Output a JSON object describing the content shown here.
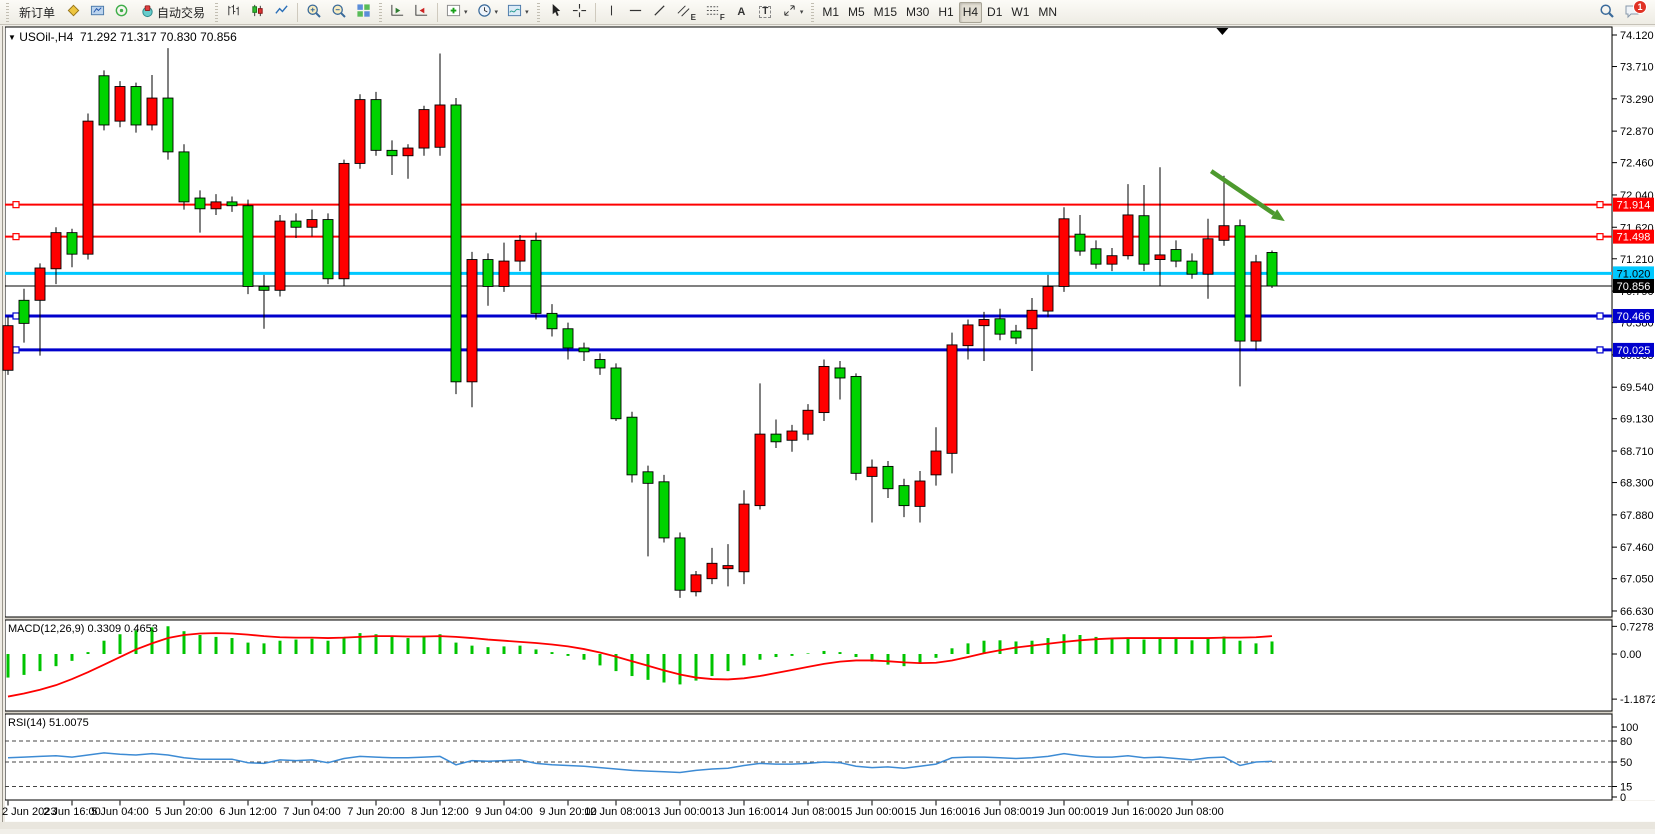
{
  "toolbar": {
    "new_order_label": "新订单",
    "autotrade_label": "自动交易",
    "timeframes": [
      "M1",
      "M5",
      "M15",
      "M30",
      "H1",
      "H4",
      "D1",
      "W1",
      "MN"
    ],
    "active_timeframe": "H4",
    "chat_badge": "1",
    "icon_names": [
      "order-gold-icon",
      "terminal-icon",
      "signals-icon",
      "autotrade-icon",
      "bar-chart-icon",
      "candle-chart-icon",
      "line-chart-icon",
      "zoom-in-icon",
      "zoom-out-icon",
      "tile-windows-icon",
      "auto-scroll-icon",
      "chart-shift-icon",
      "add-indicator-icon",
      "period-clock-icon",
      "template-icon",
      "cursor-icon",
      "crosshair-icon",
      "vline-icon",
      "hline-icon",
      "trendline-icon",
      "channel-icon",
      "fibonacci-icon",
      "text-icon",
      "label-icon",
      "arrows-icon",
      "search-icon",
      "chat-icon"
    ]
  },
  "glyphs": {
    "dropdown": "▾",
    "title_caret": "▼",
    "letter_a": "A",
    "letter_t": "T",
    "letter_e": "E",
    "letter_f": "F"
  },
  "chart": {
    "symbol_info": "USOil-,H4",
    "ohlc_text": "71.292 71.317 70.830 70.856"
  },
  "indicators": {
    "macd_label": "MACD(12,26,9) 0.3309 0.4653",
    "rsi_label": "RSI(14) 51.0075"
  },
  "axes": {
    "price_ticks": [
      "74.120",
      "73.710",
      "73.290",
      "72.870",
      "72.460",
      "72.040",
      "71.620",
      "71.210",
      "70.790",
      "70.380",
      "69.960",
      "69.540",
      "69.130",
      "68.710",
      "68.300",
      "67.880",
      "67.460",
      "67.050",
      "66.630"
    ],
    "macd_ticks": [
      "0.7278",
      "0.00",
      "-1.1872"
    ],
    "rsi_ticks": [
      "100",
      "80",
      "50",
      "15",
      "0"
    ],
    "rsi_levels": [
      80,
      50,
      15
    ],
    "time_labels": [
      {
        "bar": 0,
        "label": "2 Jun 2023"
      },
      {
        "bar": 4,
        "label": "2 Jun 16:00"
      },
      {
        "bar": 7,
        "label": "5 Jun 04:00"
      },
      {
        "bar": 11,
        "label": "5 Jun 20:00"
      },
      {
        "bar": 15,
        "label": "6 Jun 12:00"
      },
      {
        "bar": 19,
        "label": "7 Jun 04:00"
      },
      {
        "bar": 23,
        "label": "7 Jun 20:00"
      },
      {
        "bar": 27,
        "label": "8 Jun 12:00"
      },
      {
        "bar": 31,
        "label": "9 Jun 04:00"
      },
      {
        "bar": 35,
        "label": "9 Jun 20:00"
      },
      {
        "bar": 38,
        "label": "12 Jun 08:00"
      },
      {
        "bar": 42,
        "label": "13 Jun 00:00"
      },
      {
        "bar": 46,
        "label": "13 Jun 16:00"
      },
      {
        "bar": 50,
        "label": "14 Jun 08:00"
      },
      {
        "bar": 54,
        "label": "15 Jun 00:00"
      },
      {
        "bar": 58,
        "label": "15 Jun 16:00"
      },
      {
        "bar": 62,
        "label": "16 Jun 08:00"
      },
      {
        "bar": 66,
        "label": "19 Jun 00:00"
      },
      {
        "bar": 70,
        "label": "19 Jun 16:00"
      },
      {
        "bar": 74,
        "label": "20 Jun 08:00"
      }
    ],
    "price_labels": [
      {
        "price": 71.914,
        "label": "71.914",
        "bg": "#fe0000",
        "fg": "#ffffff"
      },
      {
        "price": 71.498,
        "label": "71.498",
        "bg": "#fe0000",
        "fg": "#ffffff"
      },
      {
        "price": 71.02,
        "label": "71.020",
        "bg": "#00c8ff",
        "fg": "#000000"
      },
      {
        "price": 70.856,
        "label": "70.856",
        "bg": "#000000",
        "fg": "#ffffff"
      },
      {
        "price": 70.466,
        "label": "70.466",
        "bg": "#0000cc",
        "fg": "#ffffff"
      },
      {
        "price": 70.025,
        "label": "70.025",
        "bg": "#0000cc",
        "fg": "#ffffff"
      }
    ]
  },
  "colors": {
    "bull_candle": "#fe0000",
    "bear_candle": "#00d200",
    "candle_outline": "#000000",
    "macd_histogram": "#00c400",
    "macd_signal": "#fe0000",
    "rsi_line": "#3d8bd4",
    "resistance_line": "#fe0000",
    "pivot_line": "#00c8ff",
    "support_line": "#0000cc",
    "current_price_line": "#000000",
    "arrow": "#4d9a2e"
  },
  "chart_data": {
    "type": "candlestick",
    "symbol": "USOil",
    "timeframe": "H4",
    "price_range": [
      66.63,
      74.12
    ],
    "note": "Chinese color convention: red = bullish (close>open), green = bearish",
    "candles": [
      [
        69.76,
        70.46,
        69.7,
        70.34
      ],
      [
        70.67,
        70.82,
        70.12,
        70.37
      ],
      [
        70.67,
        71.15,
        69.95,
        71.09
      ],
      [
        71.08,
        71.62,
        70.88,
        71.55
      ],
      [
        71.55,
        71.6,
        71.1,
        71.27
      ],
      [
        71.27,
        73.1,
        71.2,
        73.0
      ],
      [
        73.59,
        73.66,
        72.88,
        72.95
      ],
      [
        73.0,
        73.52,
        72.92,
        73.45
      ],
      [
        73.45,
        73.5,
        72.85,
        72.95
      ],
      [
        72.95,
        73.6,
        72.88,
        73.3
      ],
      [
        73.3,
        73.95,
        72.5,
        72.6
      ],
      [
        72.6,
        72.7,
        71.85,
        71.95
      ],
      [
        72.0,
        72.1,
        71.55,
        71.86
      ],
      [
        71.86,
        72.05,
        71.78,
        71.95
      ],
      [
        71.95,
        72.02,
        71.82,
        71.9
      ],
      [
        71.9,
        71.98,
        70.75,
        70.85
      ],
      [
        70.85,
        71.0,
        70.3,
        70.8
      ],
      [
        70.8,
        71.78,
        70.72,
        71.7
      ],
      [
        71.7,
        71.8,
        71.48,
        71.62
      ],
      [
        71.62,
        71.85,
        71.5,
        71.72
      ],
      [
        71.72,
        71.8,
        70.88,
        70.95
      ],
      [
        70.95,
        72.5,
        70.85,
        72.45
      ],
      [
        72.45,
        73.35,
        72.38,
        73.28
      ],
      [
        73.28,
        73.38,
        72.55,
        72.62
      ],
      [
        72.62,
        72.75,
        72.3,
        72.55
      ],
      [
        72.55,
        72.7,
        72.25,
        72.65
      ],
      [
        72.65,
        73.2,
        72.55,
        73.15
      ],
      [
        72.66,
        73.88,
        72.55,
        73.21
      ],
      [
        73.21,
        73.3,
        69.45,
        69.61
      ],
      [
        69.61,
        71.3,
        69.28,
        71.2
      ],
      [
        71.2,
        71.28,
        70.6,
        70.85
      ],
      [
        70.85,
        71.42,
        70.78,
        71.18
      ],
      [
        71.18,
        71.52,
        71.05,
        71.45
      ],
      [
        71.45,
        71.55,
        70.42,
        70.5
      ],
      [
        70.5,
        70.62,
        70.2,
        70.3
      ],
      [
        70.3,
        70.38,
        69.9,
        70.05
      ],
      [
        70.05,
        70.12,
        69.88,
        70.0
      ],
      [
        69.9,
        69.98,
        69.7,
        69.79
      ],
      [
        69.79,
        69.85,
        69.1,
        69.13
      ],
      [
        69.15,
        69.22,
        68.3,
        68.4
      ],
      [
        68.44,
        68.52,
        67.34,
        68.29
      ],
      [
        68.31,
        68.4,
        67.52,
        67.58
      ],
      [
        67.58,
        67.65,
        66.8,
        66.9
      ],
      [
        66.88,
        67.15,
        66.82,
        67.1
      ],
      [
        67.05,
        67.45,
        66.98,
        67.25
      ],
      [
        67.18,
        67.5,
        66.95,
        67.22
      ],
      [
        67.14,
        68.2,
        66.98,
        68.02
      ],
      [
        68.0,
        69.59,
        67.95,
        68.93
      ],
      [
        68.93,
        69.12,
        68.75,
        68.83
      ],
      [
        68.85,
        69.05,
        68.7,
        68.97
      ],
      [
        68.93,
        69.32,
        68.85,
        69.24
      ],
      [
        69.21,
        69.9,
        69.1,
        69.81
      ],
      [
        69.79,
        69.88,
        69.38,
        69.66
      ],
      [
        69.68,
        69.72,
        68.33,
        68.42
      ],
      [
        68.38,
        68.6,
        67.78,
        68.5
      ],
      [
        68.51,
        68.58,
        68.1,
        68.22
      ],
      [
        68.26,
        68.35,
        67.85,
        68.0
      ],
      [
        67.99,
        68.45,
        67.78,
        68.32
      ],
      [
        68.4,
        69.02,
        68.26,
        68.71
      ],
      [
        68.68,
        70.25,
        68.42,
        70.09
      ],
      [
        70.08,
        70.42,
        69.9,
        70.35
      ],
      [
        70.34,
        70.52,
        69.88,
        70.42
      ],
      [
        70.43,
        70.56,
        70.15,
        70.23
      ],
      [
        70.27,
        70.35,
        70.1,
        70.18
      ],
      [
        70.3,
        70.7,
        69.75,
        70.54
      ],
      [
        70.53,
        71.0,
        70.45,
        70.85
      ],
      [
        70.85,
        71.88,
        70.78,
        71.73
      ],
      [
        71.53,
        71.78,
        71.25,
        71.31
      ],
      [
        71.34,
        71.45,
        71.08,
        71.14
      ],
      [
        71.14,
        71.35,
        71.05,
        71.25
      ],
      [
        71.25,
        72.18,
        71.2,
        71.78
      ],
      [
        71.77,
        72.17,
        71.05,
        71.14
      ],
      [
        71.2,
        72.4,
        70.85,
        71.26
      ],
      [
        71.33,
        71.45,
        71.1,
        71.18
      ],
      [
        71.18,
        71.28,
        70.95,
        71.01
      ],
      [
        71.01,
        71.73,
        70.69,
        71.47
      ],
      [
        71.45,
        72.29,
        71.38,
        71.64
      ],
      [
        71.64,
        71.72,
        69.55,
        70.14
      ],
      [
        70.14,
        71.26,
        70.02,
        71.17
      ],
      [
        71.292,
        71.317,
        70.83,
        70.856
      ]
    ],
    "levels": [
      {
        "price": 71.914,
        "color": "#fe0000",
        "width": 2,
        "handles": true
      },
      {
        "price": 71.498,
        "color": "#fe0000",
        "width": 2,
        "handles": true
      },
      {
        "price": 71.02,
        "color": "#00c8ff",
        "width": 3,
        "handles": false
      },
      {
        "price": 70.466,
        "color": "#0000cc",
        "width": 3,
        "handles": true
      },
      {
        "price": 70.025,
        "color": "#0000cc",
        "width": 3,
        "handles": true
      },
      {
        "price": 70.856,
        "color": "#000000",
        "width": 1,
        "handles": false
      }
    ],
    "annotations": {
      "arrow": {
        "from_bar": 75.2,
        "from_price": 72.35,
        "to_bar": 79.8,
        "to_price": 71.7,
        "color": "#4d9a2e"
      },
      "shift_marker_bar": 75.9
    },
    "macd": {
      "params": "12,26,9",
      "current_main": 0.3309,
      "current_signal": 0.4653,
      "range": [
        -1.1872,
        0.7278
      ],
      "histogram": [
        -0.62,
        -0.55,
        -0.45,
        -0.32,
        -0.18,
        0.05,
        0.35,
        0.52,
        0.62,
        0.7,
        0.73,
        0.6,
        0.5,
        0.45,
        0.42,
        0.3,
        0.28,
        0.35,
        0.38,
        0.4,
        0.35,
        0.45,
        0.55,
        0.52,
        0.45,
        0.42,
        0.45,
        0.52,
        0.3,
        0.22,
        0.18,
        0.2,
        0.22,
        0.12,
        0.05,
        -0.05,
        -0.15,
        -0.3,
        -0.45,
        -0.58,
        -0.68,
        -0.75,
        -0.8,
        -0.7,
        -0.58,
        -0.45,
        -0.3,
        -0.15,
        -0.08,
        -0.05,
        0.0,
        0.08,
        0.05,
        -0.08,
        -0.2,
        -0.28,
        -0.32,
        -0.25,
        -0.1,
        0.15,
        0.28,
        0.35,
        0.36,
        0.33,
        0.35,
        0.42,
        0.52,
        0.5,
        0.45,
        0.42,
        0.4,
        0.38,
        0.42,
        0.4,
        0.36,
        0.42,
        0.46,
        0.35,
        0.28,
        0.33
      ],
      "signal": [
        -1.12,
        -1.04,
        -0.94,
        -0.82,
        -0.66,
        -0.48,
        -0.28,
        -0.08,
        0.12,
        0.28,
        0.42,
        0.5,
        0.54,
        0.55,
        0.54,
        0.51,
        0.47,
        0.44,
        0.43,
        0.43,
        0.42,
        0.43,
        0.45,
        0.47,
        0.47,
        0.46,
        0.46,
        0.47,
        0.45,
        0.42,
        0.38,
        0.35,
        0.32,
        0.29,
        0.25,
        0.2,
        0.13,
        0.04,
        -0.07,
        -0.19,
        -0.31,
        -0.43,
        -0.54,
        -0.62,
        -0.66,
        -0.67,
        -0.64,
        -0.58,
        -0.5,
        -0.42,
        -0.34,
        -0.26,
        -0.2,
        -0.17,
        -0.17,
        -0.19,
        -0.22,
        -0.24,
        -0.23,
        -0.17,
        -0.08,
        0.02,
        0.1,
        0.17,
        0.22,
        0.27,
        0.32,
        0.36,
        0.39,
        0.41,
        0.42,
        0.42,
        0.42,
        0.42,
        0.42,
        0.42,
        0.43,
        0.43,
        0.44,
        0.47
      ]
    },
    "rsi": {
      "period": 14,
      "current": 51.0075,
      "values": [
        56,
        57,
        58,
        59,
        57,
        60,
        63,
        61,
        60,
        62,
        60,
        56,
        54,
        54,
        54,
        49,
        48,
        53,
        52,
        53,
        49,
        55,
        58,
        57,
        56,
        56,
        57,
        58,
        46,
        52,
        51,
        52,
        53,
        48,
        46,
        45,
        44,
        42,
        40,
        38,
        37,
        36,
        35,
        38,
        40,
        41,
        45,
        48,
        47,
        47,
        48,
        50,
        49,
        44,
        42,
        43,
        41,
        44,
        47,
        56,
        57,
        57,
        56,
        55,
        56,
        58,
        62,
        59,
        57,
        57,
        59,
        56,
        57,
        55,
        53,
        56,
        57,
        45,
        50,
        51
      ]
    }
  }
}
